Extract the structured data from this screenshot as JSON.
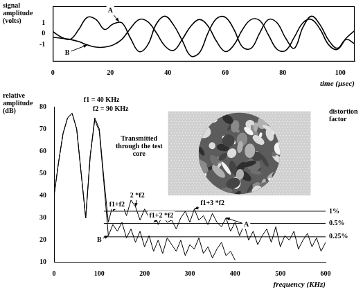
{
  "chart_data": [
    {
      "type": "line",
      "y_label": "signal amplitude (volts)",
      "x_label": "time (µsec)",
      "x": [
        0,
        3,
        6,
        9,
        12,
        15,
        18,
        21,
        24,
        27,
        30,
        33,
        36,
        39,
        42,
        45,
        48,
        51,
        54,
        57,
        60,
        63,
        66,
        69,
        72,
        75,
        78,
        81,
        84,
        87,
        90,
        93,
        96,
        99,
        102,
        105
      ],
      "series": [
        {
          "name": "A",
          "color": "#000000",
          "values": [
            0.2,
            -0.3,
            -0.5,
            0.4,
            1.5,
            1.3,
            0.4,
            0.9,
            1.0,
            -0.4,
            -1.6,
            -1.0,
            0.9,
            1.6,
            0.8,
            -0.6,
            -2.0,
            -1.7,
            0.1,
            1.4,
            1.5,
            0.4,
            -1.2,
            -1.3,
            0.1,
            1.3,
            1.0,
            -0.4,
            -1.3,
            0.6,
            1.6,
            0.8,
            -0.6,
            -1.3,
            -0.5,
            -0.9
          ],
          "label_at": [
            20,
            2.1
          ],
          "arrow_to": [
            23,
            1.1
          ]
        },
        {
          "name": "B",
          "color": "#000000",
          "values": [
            -0.3,
            -0.4,
            -0.5,
            -0.7,
            -1.0,
            -1.2,
            -1.2,
            -1.0,
            -0.5,
            0.5,
            1.3,
            1.1,
            0.1,
            -1.1,
            -1.5,
            -0.5,
            0.7,
            1.3,
            0.7,
            -0.7,
            -1.6,
            -1.0,
            0.4,
            1.3,
            1.2,
            -0.1,
            -1.4,
            -1.5,
            -0.3,
            1.0,
            1.3,
            0.4,
            -1.0,
            -1.4,
            -0.4,
            0.3
          ],
          "label_at": [
            5,
            -1.7
          ],
          "arrow_to": [
            12,
            -1.0
          ]
        }
      ],
      "xlim": [
        0,
        105
      ],
      "ylim": [
        -2.5,
        2.5
      ],
      "xticks": [
        0,
        20,
        40,
        60,
        80,
        100
      ],
      "yticks": [
        -1,
        0,
        1
      ],
      "grid": false
    },
    {
      "type": "line",
      "y_label": "relative amplitude (dB)",
      "x_label": "frequency (KHz)",
      "right_title": "distortion factor",
      "x": [
        0,
        10,
        20,
        30,
        40,
        50,
        60,
        70,
        80,
        90,
        100,
        110,
        120,
        130,
        140,
        150,
        160,
        170,
        180,
        190,
        200,
        210,
        220,
        230,
        240,
        250,
        260,
        270,
        280,
        290,
        300,
        310,
        320,
        330,
        340,
        350,
        360,
        370,
        380,
        390,
        400,
        410,
        420,
        430,
        440,
        450,
        460,
        470,
        480,
        490,
        500,
        510,
        520,
        530,
        540,
        550,
        560,
        570,
        580,
        590,
        600
      ],
      "series": [
        {
          "name": "A",
          "color": "#000000",
          "values": [
            40,
            55,
            68,
            75,
            77,
            70,
            50,
            30,
            58,
            75,
            70,
            48,
            28,
            36,
            37,
            37,
            31,
            38,
            35,
            29,
            34,
            30,
            33,
            27,
            31,
            28,
            29,
            25,
            30,
            33,
            28,
            34,
            29,
            31,
            27,
            32,
            28,
            26,
            30,
            24,
            28,
            22,
            27,
            20,
            24,
            18,
            22,
            25,
            19,
            26,
            17,
            22,
            20,
            24,
            16,
            20,
            23,
            17,
            21,
            15,
            19
          ],
          "label_at": [
            425,
            27
          ],
          "arrow_to": [
            380,
            30
          ]
        },
        {
          "name": "B",
          "color": "#000000",
          "values": [
            40,
            55,
            68,
            75,
            77,
            70,
            50,
            30,
            58,
            74,
            69,
            46,
            22,
            27,
            24,
            28,
            21,
            25,
            19,
            24,
            17,
            22,
            15,
            20,
            14,
            21,
            18,
            15,
            20,
            13,
            18,
            16,
            21,
            14,
            17,
            12,
            16,
            19,
            13,
            15,
            11,
            null,
            null,
            null,
            null,
            null,
            null,
            null,
            null,
            null,
            null,
            null,
            null,
            null,
            null,
            null,
            null,
            null,
            null,
            null,
            null
          ],
          "label_at": [
            100,
            20
          ],
          "arrow_to": [
            120,
            22
          ]
        }
      ],
      "annotations": [
        {
          "text": "f1 = 40 KHz",
          "x": 105,
          "y": 83
        },
        {
          "text": "f2 = 90 KHz",
          "x": 125,
          "y": 79
        },
        {
          "text": "Transmitted through the test core",
          "x": 188,
          "y": 62
        },
        {
          "text": "2 *f2",
          "x": 184,
          "y": 40,
          "arrow_to": [
            180,
            35
          ]
        },
        {
          "text": "f1+f2",
          "x": 139,
          "y": 36,
          "arrow_to": [
            130,
            33
          ]
        },
        {
          "text": "f1+2 *f2",
          "x": 237,
          "y": 31,
          "arrow_to": [
            220,
            28
          ]
        },
        {
          "text": "f1+3 *f2",
          "x": 350,
          "y": 36.5,
          "arrow_to": [
            310,
            34
          ]
        }
      ],
      "reference_lines": [
        {
          "value": 33,
          "label": "1%"
        },
        {
          "value": 27.5,
          "label": "0.5%"
        },
        {
          "value": 21.5,
          "label": "0.25%"
        }
      ],
      "reference_start": 110,
      "xlim": [
        0,
        600
      ],
      "ylim": [
        10,
        80
      ],
      "xticks": [
        0,
        100,
        200,
        300,
        400,
        500,
        600
      ],
      "yticks": [
        10,
        20,
        30,
        40,
        50,
        60,
        70,
        80
      ],
      "grid": false
    }
  ]
}
